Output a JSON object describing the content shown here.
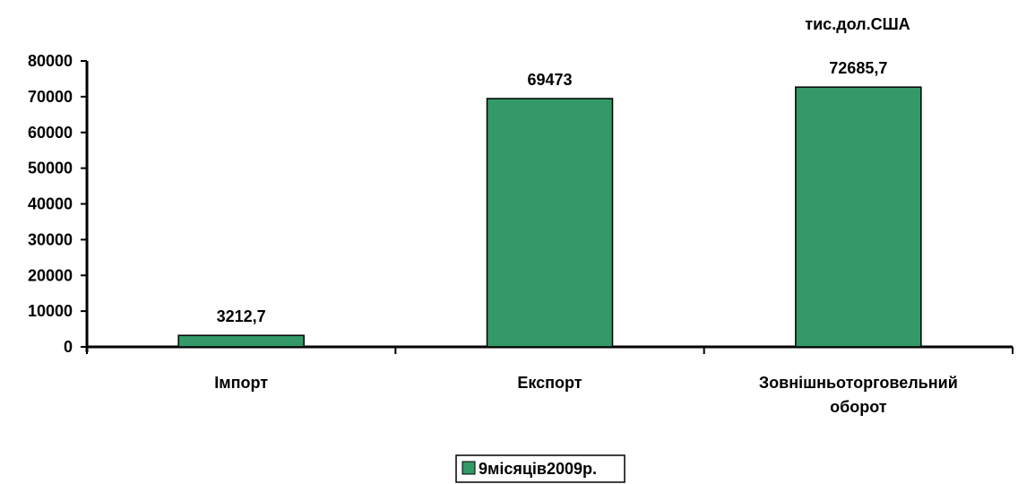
{
  "chart_data": {
    "type": "bar",
    "unit_label": "тис.дол.США",
    "categories": [
      [
        "Імпорт"
      ],
      [
        "Експорт"
      ],
      [
        "Зовнішньоторговельний",
        "оборот"
      ]
    ],
    "series": [
      {
        "name": "9місяців2009р.",
        "values": [
          3212.7,
          69473,
          72685.7
        ],
        "data_labels": [
          "3212,7",
          "69473",
          "72685,7"
        ],
        "color": "#339966"
      }
    ],
    "ylim": [
      0,
      80000
    ],
    "yticks": [
      0,
      10000,
      20000,
      30000,
      40000,
      50000,
      60000,
      70000,
      80000
    ],
    "grid": false,
    "legend_position": "bottom"
  }
}
